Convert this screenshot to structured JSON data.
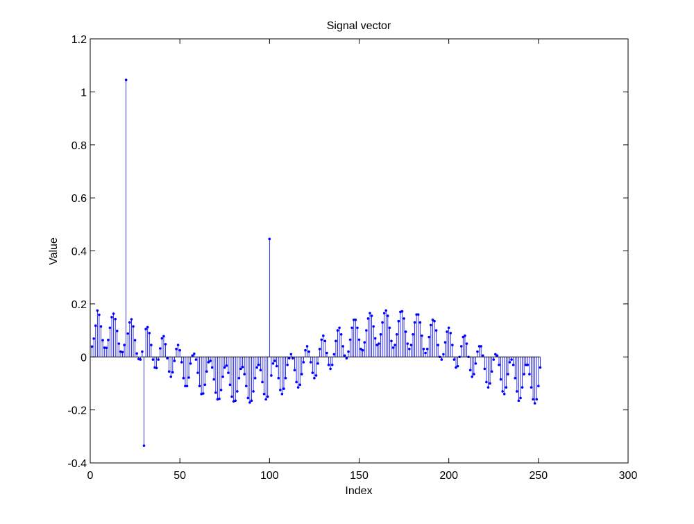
{
  "chart_data": {
    "type": "stem",
    "title": "Signal vector",
    "xlabel": "Index",
    "ylabel": "Value",
    "xlim": [
      0,
      300
    ],
    "ylim": [
      -0.4,
      1.2
    ],
    "xticks": [
      0,
      50,
      100,
      150,
      200,
      250,
      300
    ],
    "yticks": [
      -0.4,
      -0.2,
      0,
      0.2,
      0.4,
      0.6,
      0.8,
      1,
      1.2
    ],
    "xtick_labels": [
      "0",
      "50",
      "100",
      "150",
      "200",
      "250",
      "300"
    ],
    "ytick_labels": [
      "-0.4",
      "-0.2",
      "0",
      "0.2",
      "0.4",
      "0.6",
      "0.8",
      "1",
      "1.2"
    ],
    "grid": false,
    "series_color": "#0000ff",
    "axis_color": "#000000",
    "x_start": 1,
    "values": [
      0.039,
      0.069,
      0.118,
      0.175,
      0.159,
      0.115,
      0.063,
      0.035,
      0.034,
      0.064,
      0.11,
      0.15,
      0.163,
      0.143,
      0.098,
      0.05,
      0.02,
      0.018,
      0.045,
      1.045,
      0.088,
      0.13,
      0.142,
      0.115,
      0.063,
      0.013,
      -0.008,
      -0.01,
      0.02,
      -0.335,
      0.105,
      0.112,
      0.09,
      0.045,
      -0.01,
      -0.04,
      -0.042,
      -0.01,
      0.032,
      0.07,
      0.078,
      0.048,
      -0.005,
      -0.055,
      -0.075,
      -0.058,
      -0.015,
      0.03,
      0.045,
      0.025,
      -0.02,
      -0.08,
      -0.11,
      -0.11,
      -0.078,
      -0.025,
      0.005,
      0.012,
      -0.01,
      -0.06,
      -0.11,
      -0.14,
      -0.138,
      -0.105,
      -0.055,
      -0.02,
      -0.015,
      -0.04,
      -0.085,
      -0.135,
      -0.16,
      -0.158,
      -0.125,
      -0.075,
      -0.04,
      -0.033,
      -0.06,
      -0.105,
      -0.15,
      -0.168,
      -0.165,
      -0.13,
      -0.08,
      -0.045,
      -0.038,
      -0.065,
      -0.11,
      -0.155,
      -0.172,
      -0.165,
      -0.13,
      -0.08,
      -0.04,
      -0.03,
      -0.05,
      -0.095,
      -0.14,
      -0.16,
      -0.15,
      0.445,
      -0.07,
      -0.025,
      -0.015,
      -0.035,
      -0.08,
      -0.125,
      -0.14,
      -0.12,
      -0.08,
      -0.03,
      -0.005,
      0.01,
      -0.005,
      -0.05,
      -0.095,
      -0.115,
      -0.105,
      -0.065,
      -0.02,
      0.025,
      0.04,
      0.02,
      -0.02,
      -0.06,
      -0.08,
      -0.07,
      -0.025,
      0.03,
      0.065,
      0.08,
      0.06,
      0.015,
      -0.03,
      -0.045,
      -0.03,
      0.01,
      0.06,
      0.1,
      0.11,
      0.085,
      0.04,
      0.005,
      -0.005,
      0.02,
      0.065,
      0.11,
      0.14,
      0.14,
      0.11,
      0.065,
      0.03,
      0.025,
      0.055,
      0.1,
      0.145,
      0.165,
      0.155,
      0.115,
      0.07,
      0.045,
      0.05,
      0.085,
      0.13,
      0.165,
      0.175,
      0.155,
      0.11,
      0.06,
      0.035,
      0.045,
      0.085,
      0.135,
      0.17,
      0.172,
      0.145,
      0.095,
      0.05,
      0.03,
      0.045,
      0.085,
      0.13,
      0.16,
      0.16,
      0.13,
      0.08,
      0.03,
      0.015,
      0.03,
      0.075,
      0.12,
      0.14,
      0.135,
      0.1,
      0.045,
      0.0,
      -0.01,
      0.01,
      0.055,
      0.095,
      0.11,
      0.09,
      0.045,
      -0.01,
      -0.04,
      -0.035,
      0.0,
      0.04,
      0.075,
      0.08,
      0.05,
      0.0,
      -0.05,
      -0.075,
      -0.065,
      -0.025,
      0.02,
      0.04,
      0.04,
      0.005,
      -0.045,
      -0.095,
      -0.115,
      -0.1,
      -0.055,
      -0.01,
      0.01,
      0.005,
      -0.03,
      -0.085,
      -0.13,
      -0.14,
      -0.115,
      -0.065,
      -0.02,
      -0.01,
      -0.03,
      -0.08,
      -0.13,
      -0.165,
      -0.155,
      -0.115,
      -0.065,
      -0.03,
      -0.03,
      -0.065,
      -0.115,
      -0.16,
      -0.175,
      -0.16,
      -0.11,
      -0.04
    ]
  }
}
